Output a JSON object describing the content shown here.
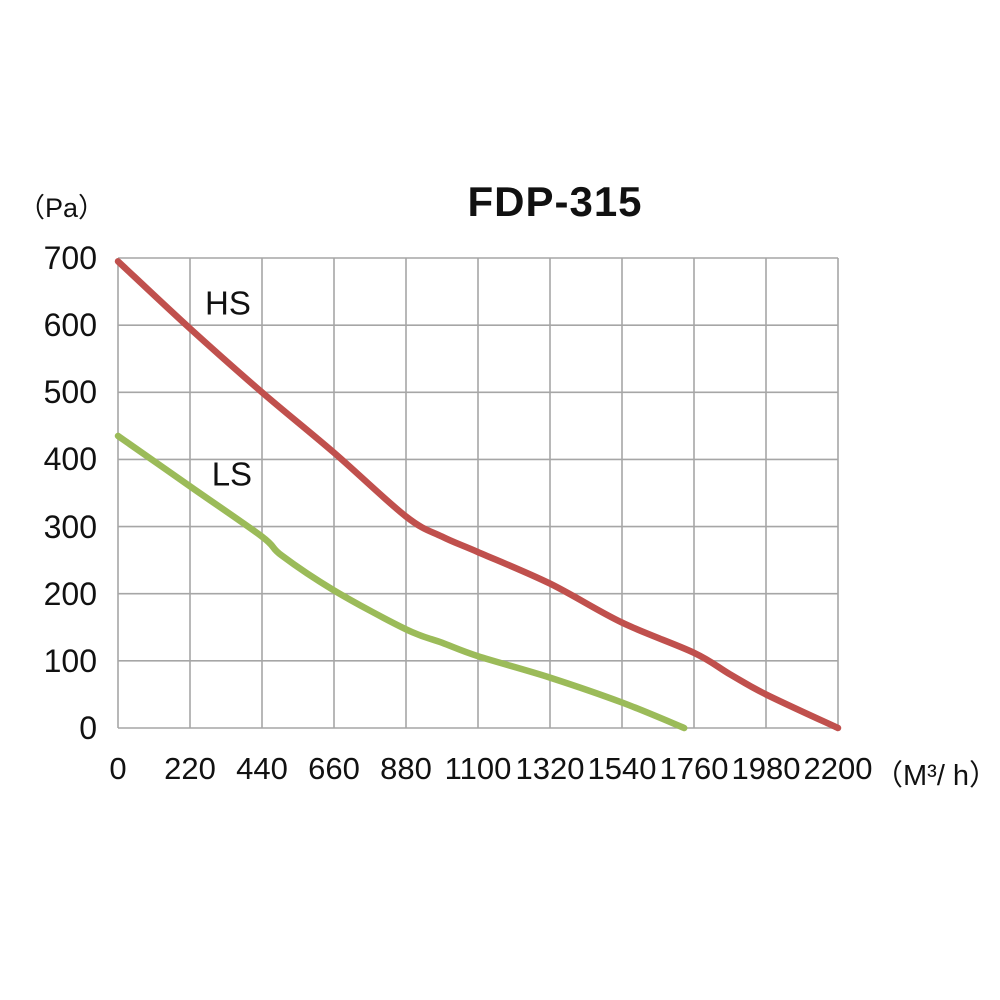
{
  "title": "FDP-315",
  "y_axis_unit": "（Pa）",
  "x_axis_unit": "（M³/ h）",
  "text_color": "#111111",
  "chart_data": {
    "type": "line",
    "title": "FDP-315",
    "xlabel": "M³/h",
    "ylabel": "Pa",
    "xlim": [
      0,
      2200
    ],
    "ylim": [
      0,
      700
    ],
    "x_ticks": [
      0,
      220,
      440,
      660,
      880,
      1100,
      1320,
      1540,
      1760,
      1980,
      2200
    ],
    "y_ticks": [
      0,
      100,
      200,
      300,
      400,
      500,
      600,
      700
    ],
    "grid": "on",
    "gridline_color": "#a6a6a6",
    "legend_position": "inline-labels",
    "series": [
      {
        "name": "HS",
        "color": "#c0504d",
        "label_at": {
          "x": 336,
          "y": 633
        },
        "points": [
          [
            0,
            695
          ],
          [
            220,
            595
          ],
          [
            440,
            500
          ],
          [
            660,
            410
          ],
          [
            880,
            315
          ],
          [
            990,
            285
          ],
          [
            1100,
            262
          ],
          [
            1320,
            215
          ],
          [
            1540,
            157
          ],
          [
            1760,
            112
          ],
          [
            1870,
            80
          ],
          [
            1980,
            50
          ],
          [
            2200,
            0
          ]
        ]
      },
      {
        "name": "LS",
        "color": "#9bbb59",
        "label_at": {
          "x": 348,
          "y": 378
        },
        "points": [
          [
            0,
            435
          ],
          [
            220,
            360
          ],
          [
            440,
            285
          ],
          [
            500,
            257
          ],
          [
            660,
            205
          ],
          [
            880,
            147
          ],
          [
            990,
            127
          ],
          [
            1100,
            107
          ],
          [
            1320,
            75
          ],
          [
            1540,
            38
          ],
          [
            1730,
            0
          ]
        ]
      }
    ]
  }
}
